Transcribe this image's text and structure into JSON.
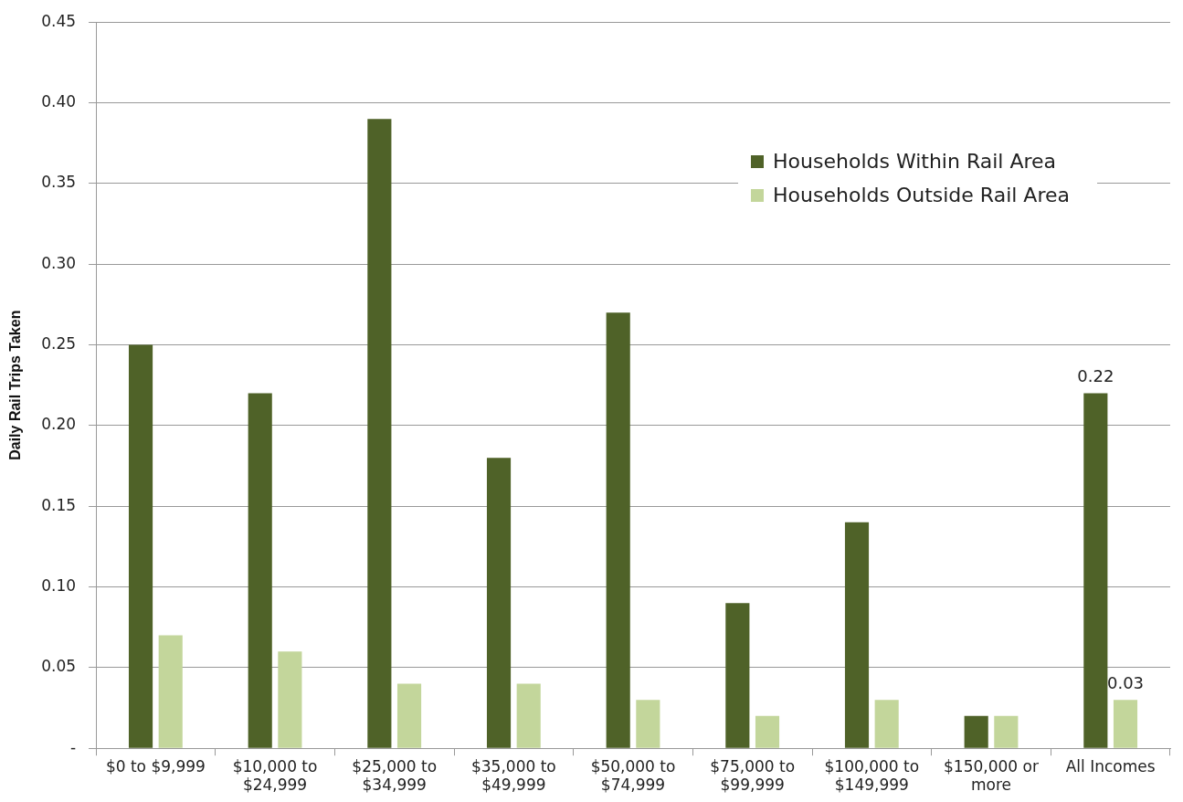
{
  "chart_data": {
    "type": "bar",
    "ylabel": "Daily Rail Trips Taken",
    "categories": [
      "$0 to $9,999",
      "$10,000 to $24,999",
      "$25,000 to $34,999",
      "$35,000 to $49,999",
      "$50,000 to $74,999",
      "$75,000 to $99,999",
      "$100,000 to $149,999",
      "$150,000 or more",
      "All Incomes"
    ],
    "series": [
      {
        "name": "Households Within Rail Area",
        "color": "#4f6228",
        "values": [
          0.25,
          0.22,
          0.39,
          0.18,
          0.27,
          0.09,
          0.14,
          0.02,
          0.22
        ],
        "value_labels": [
          null,
          null,
          null,
          null,
          null,
          null,
          null,
          null,
          "0.22"
        ]
      },
      {
        "name": "Households Outside Rail Area",
        "color": "#c3d69b",
        "values": [
          0.07,
          0.06,
          0.04,
          0.04,
          0.03,
          0.02,
          0.03,
          0.02,
          0.03
        ],
        "value_labels": [
          null,
          null,
          null,
          null,
          null,
          null,
          null,
          null,
          "0.03"
        ]
      }
    ],
    "ylim": [
      0,
      0.45
    ],
    "yticks": [
      {
        "value": 0,
        "label": "-"
      },
      {
        "value": 0.05,
        "label": "0.05"
      },
      {
        "value": 0.1,
        "label": "0.10"
      },
      {
        "value": 0.15,
        "label": "0.15"
      },
      {
        "value": 0.2,
        "label": "0.20"
      },
      {
        "value": 0.25,
        "label": "0.25"
      },
      {
        "value": 0.3,
        "label": "0.30"
      },
      {
        "value": 0.35,
        "label": "0.35"
      },
      {
        "value": 0.4,
        "label": "0.40"
      },
      {
        "value": 0.45,
        "label": "0.45"
      }
    ],
    "grid": "y",
    "legend": "top right"
  }
}
